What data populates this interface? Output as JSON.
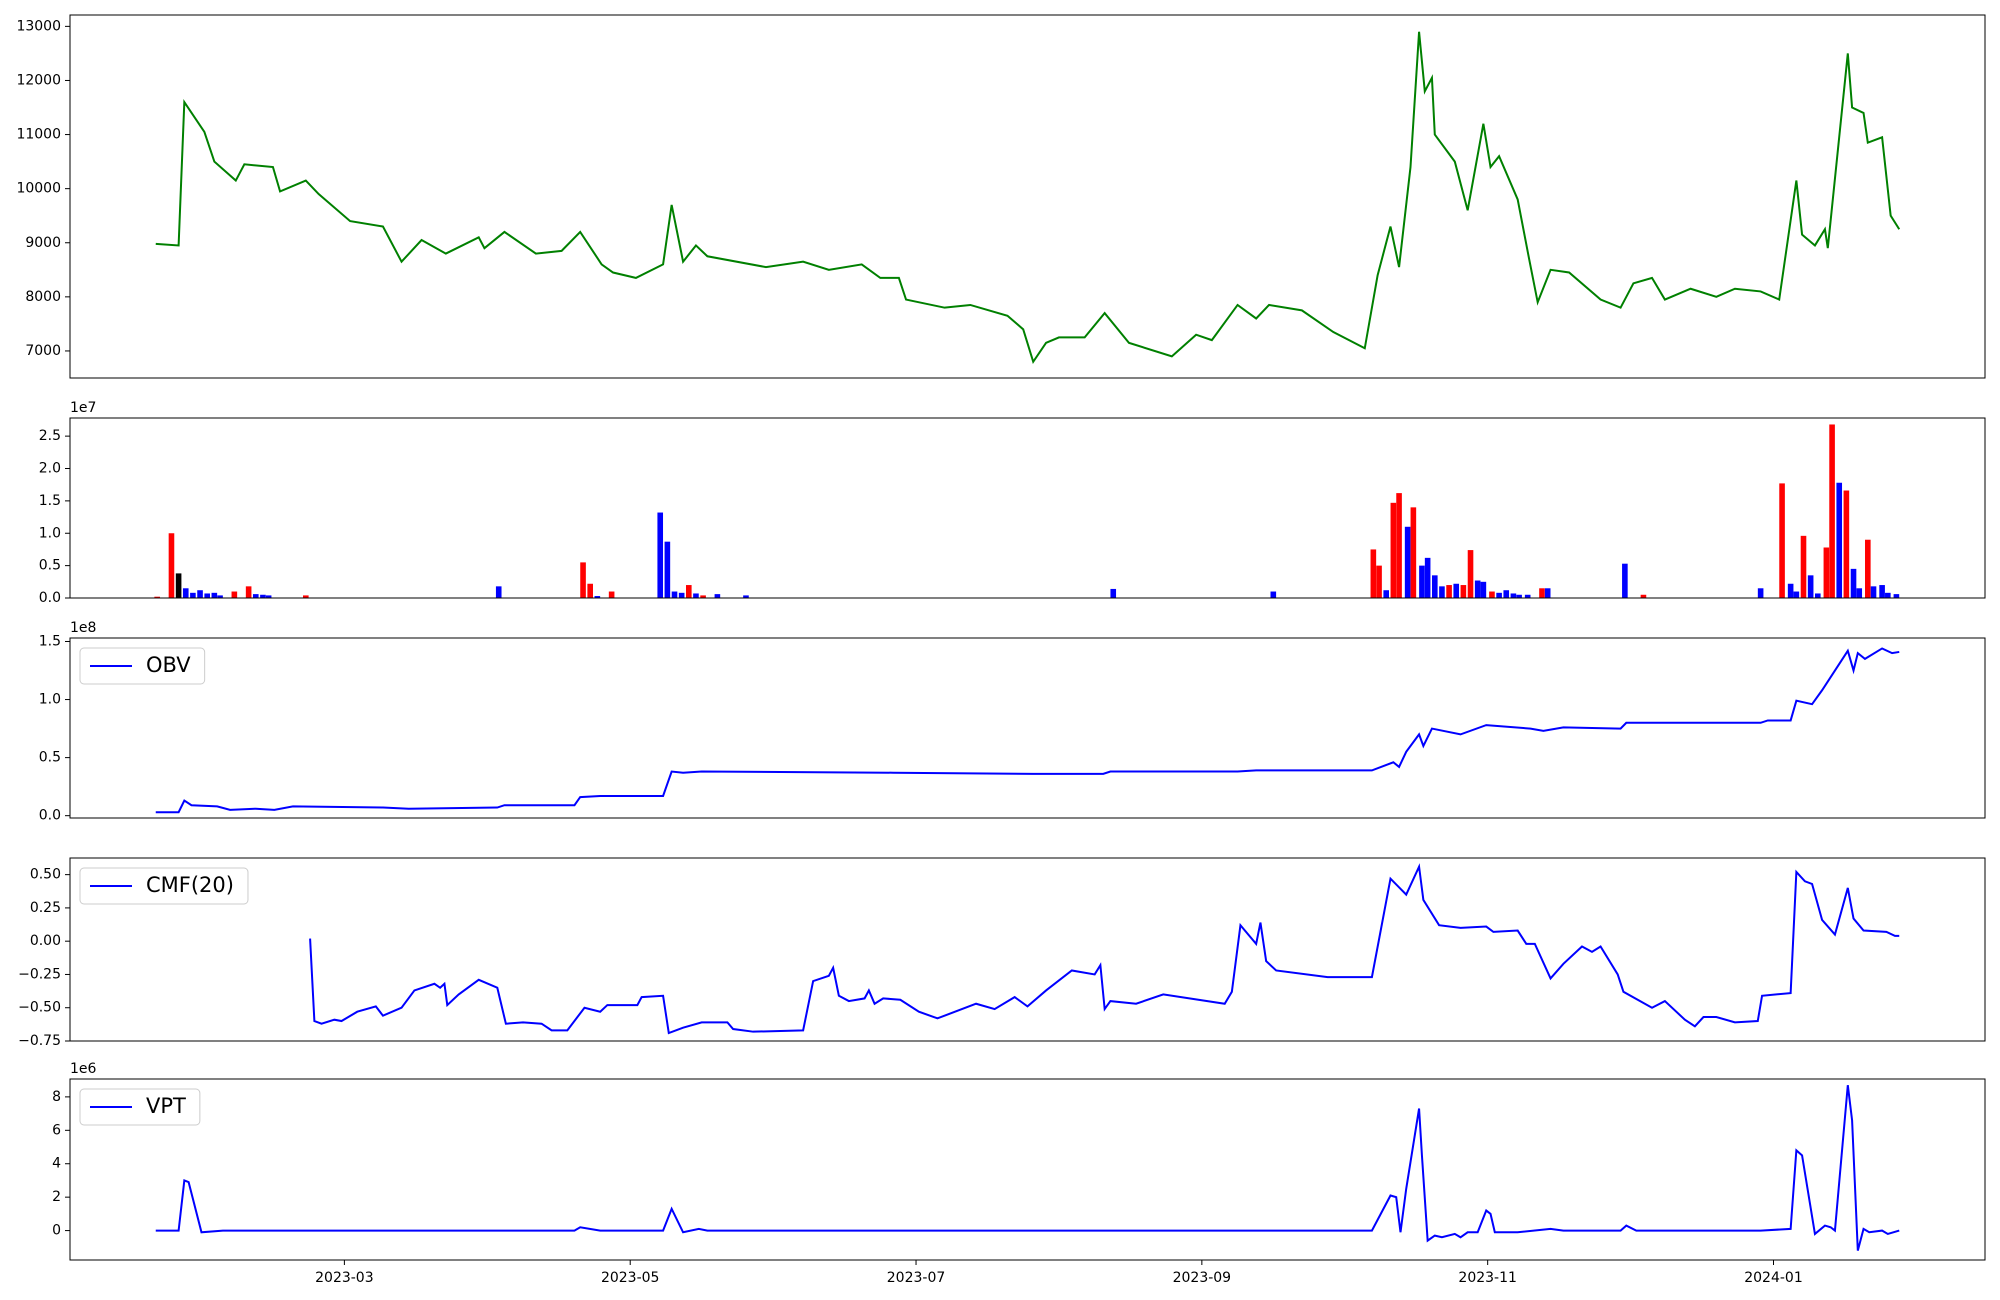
{
  "chart_data": [
    {
      "type": "line",
      "color": "#008000",
      "x": [
        0.68,
        0.84,
        0.88,
        1.02,
        1.09,
        1.24,
        1.3,
        1.5,
        1.55,
        1.73,
        1.82,
        2.04,
        2.27,
        2.4,
        2.54,
        2.71,
        2.94,
        2.98,
        3.12,
        3.34,
        3.52,
        3.65,
        3.8,
        3.88,
        4.04,
        4.23,
        4.29,
        4.37,
        4.46,
        4.54,
        4.95,
        5.21,
        5.39,
        5.62,
        5.75,
        5.88,
        5.93,
        6.2,
        6.38,
        6.64,
        6.75,
        6.82,
        6.91,
        7.0,
        7.18,
        7.32,
        7.49,
        7.79,
        7.96,
        8.07,
        8.25,
        8.38,
        8.47,
        8.7,
        8.92,
        9.14,
        9.23,
        9.32,
        9.38,
        9.46,
        9.52,
        9.56,
        9.61,
        9.63,
        9.77,
        9.86,
        9.97,
        10.02,
        10.08,
        10.21,
        10.29,
        10.35,
        10.44,
        10.57,
        10.79,
        10.93,
        11.02,
        11.15,
        11.24,
        11.42,
        11.6,
        11.73,
        11.91,
        12.04,
        12.16,
        12.2,
        12.29,
        12.36,
        12.38,
        12.52,
        12.55,
        12.63,
        12.66,
        12.76,
        12.82,
        12.88
      ],
      "values": [
        8980,
        8950,
        11600,
        11050,
        10500,
        10150,
        10450,
        10400,
        9950,
        10150,
        9900,
        9400,
        9300,
        8650,
        9050,
        8800,
        9100,
        8900,
        9200,
        8800,
        8850,
        9200,
        8600,
        8450,
        8350,
        8600,
        9700,
        8650,
        8950,
        8750,
        8550,
        8650,
        8500,
        8600,
        8350,
        8350,
        7950,
        7800,
        7850,
        7650,
        7400,
        6800,
        7150,
        7250,
        7250,
        7700,
        7150,
        6900,
        7300,
        7200,
        7850,
        7600,
        7850,
        7750,
        7350,
        7050,
        8400,
        9300,
        8550,
        10400,
        12900,
        11800,
        12050,
        11000,
        10500,
        9600,
        11200,
        10400,
        10600,
        9800,
        8700,
        7900,
        8500,
        8450,
        7950,
        7800,
        8250,
        8350,
        7950,
        8150,
        8000,
        8150,
        8100,
        7950,
        10150,
        9150,
        8950,
        9250,
        8900,
        12500,
        11500,
        11400,
        10850,
        10950,
        9500,
        9250
      ],
      "xlim": [
        0.08,
        13.48
      ],
      "ylim": [
        6500,
        13210
      ],
      "yticks": [
        7000,
        8000,
        9000,
        10000,
        11000,
        12000,
        13000
      ]
    },
    {
      "type": "bar",
      "offset_text": "1e7",
      "x": [
        0.69,
        0.79,
        0.84,
        0.89,
        0.94,
        0.99,
        1.04,
        1.09,
        1.13,
        1.23,
        1.33,
        1.38,
        1.43,
        1.47,
        1.73,
        3.08,
        3.67,
        3.72,
        3.77,
        3.87,
        4.21,
        4.26,
        4.31,
        4.36,
        4.41,
        4.46,
        4.51,
        4.61,
        4.81,
        7.38,
        8.5,
        9.2,
        9.24,
        9.29,
        9.34,
        9.38,
        9.44,
        9.48,
        9.54,
        9.58,
        9.63,
        9.68,
        9.73,
        9.78,
        9.83,
        9.88,
        9.93,
        9.97,
        10.03,
        10.08,
        10.13,
        10.18,
        10.22,
        10.28,
        10.38,
        10.42,
        10.96,
        11.09,
        11.91,
        12.06,
        12.12,
        12.16,
        12.21,
        12.26,
        12.31,
        12.37,
        12.41,
        12.46,
        12.51,
        12.56,
        12.6,
        12.66,
        12.7,
        12.76,
        12.8,
        12.86
      ],
      "values": [
        200000,
        10000000,
        3800000,
        1500000,
        800000,
        1200000,
        700000,
        800000,
        400000,
        1000000,
        1800000,
        600000,
        500000,
        400000,
        400000,
        1800000,
        5500000,
        2200000,
        300000,
        1000000,
        13200000,
        8700000,
        1000000,
        800000,
        2000000,
        700000,
        400000,
        600000,
        400000,
        1400000,
        1000000,
        7500000,
        5000000,
        1200000,
        14700000,
        16200000,
        11000000,
        14000000,
        5000000,
        6200000,
        3500000,
        1800000,
        2000000,
        2200000,
        2000000,
        7400000,
        2700000,
        2500000,
        1000000,
        800000,
        1200000,
        700000,
        500000,
        500000,
        1500000,
        1500000,
        5300000,
        500000,
        1500000,
        17700000,
        2200000,
        1000000,
        9600000,
        3500000,
        700000,
        7800000,
        26800000,
        17800000,
        16600000,
        4500000,
        1500000,
        9000000,
        1800000,
        2000000,
        800000,
        600000
      ],
      "colors": [
        "red",
        "red",
        "black",
        "blue",
        "blue",
        "blue",
        "blue",
        "blue",
        "blue",
        "red",
        "red",
        "blue",
        "blue",
        "blue",
        "red",
        "blue",
        "red",
        "red",
        "blue",
        "red",
        "blue",
        "blue",
        "blue",
        "blue",
        "red",
        "blue",
        "red",
        "blue",
        "blue",
        "blue",
        "blue",
        "red",
        "red",
        "blue",
        "red",
        "red",
        "blue",
        "red",
        "blue",
        "blue",
        "blue",
        "blue",
        "red",
        "blue",
        "red",
        "red",
        "blue",
        "blue",
        "red",
        "blue",
        "blue",
        "blue",
        "blue",
        "blue",
        "red",
        "blue",
        "blue",
        "red",
        "blue",
        "red",
        "blue",
        "blue",
        "red",
        "blue",
        "blue",
        "red",
        "red",
        "blue",
        "red",
        "blue",
        "blue",
        "red",
        "blue",
        "blue",
        "blue",
        "blue"
      ],
      "xlim": [
        0.08,
        13.48
      ],
      "ylim": [
        0,
        27800000
      ],
      "yticks": [
        {
          "value": 0,
          "label": "0.0"
        },
        {
          "value": 5000000,
          "label": "0.5"
        },
        {
          "value": 10000000,
          "label": "1.0"
        },
        {
          "value": 15000000,
          "label": "1.5"
        },
        {
          "value": 20000000,
          "label": "2.0"
        },
        {
          "value": 25000000,
          "label": "2.5"
        }
      ]
    },
    {
      "type": "line",
      "offset_text": "1e8",
      "legend": "upper left",
      "x": [
        0.68,
        0.84,
        0.88,
        0.93,
        1.11,
        1.2,
        1.38,
        1.51,
        1.64,
        2.27,
        2.45,
        3.07,
        3.12,
        3.61,
        3.65,
        3.79,
        4.23,
        4.29,
        4.37,
        4.5,
        5.84,
        6.82,
        7.31,
        7.36,
        8.25,
        8.38,
        9.19,
        9.34,
        9.38,
        9.43,
        9.52,
        9.55,
        9.61,
        9.81,
        9.99,
        10.3,
        10.39,
        10.53,
        10.93,
        10.97,
        11.91,
        11.96,
        12.12,
        12.16,
        12.27,
        12.34,
        12.52,
        12.56,
        12.59,
        12.64,
        12.76,
        12.83,
        12.88
      ],
      "series": [
        {
          "name": "OBV",
          "color": "#0000ff",
          "values": [
            3000000,
            3000000,
            13000000,
            9000000,
            8000000,
            5000000,
            6000000,
            5000000,
            8000000,
            7000000,
            6000000,
            7000000,
            9000000,
            9000000,
            16000000,
            17000000,
            17000000,
            38000000,
            37000000,
            38000000,
            37000000,
            36000000,
            36000000,
            38000000,
            38000000,
            39000000,
            39000000,
            46000000,
            42000000,
            55000000,
            70000000,
            60000000,
            75000000,
            70000000,
            78000000,
            75000000,
            73000000,
            76000000,
            75000000,
            80000000,
            80000000,
            82000000,
            82000000,
            99000000,
            96000000,
            108000000,
            142000000,
            125000000,
            140000000,
            135000000,
            144000000,
            140000000,
            141000000
          ]
        }
      ],
      "xlim": [
        0.08,
        13.48
      ],
      "ylim": [
        -2000000,
        153000000
      ],
      "yticks": [
        {
          "value": 0,
          "label": "0.0"
        },
        {
          "value": 50000000,
          "label": "0.5"
        },
        {
          "value": 100000000,
          "label": "1.0"
        },
        {
          "value": 150000000,
          "label": "1.5"
        }
      ]
    },
    {
      "type": "line",
      "legend": "upper left",
      "x": [
        1.76,
        1.79,
        1.84,
        1.93,
        1.98,
        2.09,
        2.22,
        2.27,
        2.4,
        2.49,
        2.63,
        2.67,
        2.7,
        2.72,
        2.8,
        2.94,
        3.07,
        3.13,
        3.25,
        3.38,
        3.45,
        3.56,
        3.68,
        3.79,
        3.84,
        4.05,
        4.08,
        4.23,
        4.27,
        4.37,
        4.5,
        4.68,
        4.72,
        4.86,
        5.21,
        5.28,
        5.39,
        5.42,
        5.46,
        5.53,
        5.64,
        5.67,
        5.71,
        5.77,
        5.89,
        6.02,
        6.15,
        6.42,
        6.55,
        6.69,
        6.78,
        6.91,
        7.09,
        7.25,
        7.29,
        7.32,
        7.36,
        7.54,
        7.73,
        8.16,
        8.21,
        8.27,
        8.38,
        8.41,
        8.45,
        8.52,
        8.88,
        9.19,
        9.32,
        9.43,
        9.52,
        9.55,
        9.66,
        9.81,
        9.99,
        10.04,
        10.21,
        10.27,
        10.33,
        10.44,
        10.53,
        10.66,
        10.73,
        10.79,
        10.91,
        10.95,
        11.15,
        11.24,
        11.38,
        11.45,
        11.51,
        11.6,
        11.73,
        11.89,
        11.92,
        12.12,
        12.16,
        12.22,
        12.27,
        12.34,
        12.43,
        12.52,
        12.56,
        12.63,
        12.79,
        12.85,
        12.88
      ],
      "series": [
        {
          "name": "CMF(20)",
          "color": "#0000ff",
          "values": [
            0.02,
            -0.6,
            -0.62,
            -0.59,
            -0.6,
            -0.53,
            -0.49,
            -0.56,
            -0.5,
            -0.37,
            -0.32,
            -0.35,
            -0.32,
            -0.48,
            -0.4,
            -0.29,
            -0.35,
            -0.62,
            -0.61,
            -0.62,
            -0.67,
            -0.67,
            -0.5,
            -0.53,
            -0.48,
            -0.48,
            -0.42,
            -0.41,
            -0.69,
            -0.65,
            -0.61,
            -0.61,
            -0.66,
            -0.68,
            -0.67,
            -0.3,
            -0.26,
            -0.2,
            -0.41,
            -0.45,
            -0.43,
            -0.37,
            -0.47,
            -0.43,
            -0.44,
            -0.53,
            -0.58,
            -0.47,
            -0.51,
            -0.42,
            -0.49,
            -0.37,
            -0.22,
            -0.25,
            -0.18,
            -0.51,
            -0.45,
            -0.47,
            -0.4,
            -0.47,
            -0.38,
            0.12,
            -0.02,
            0.14,
            -0.15,
            -0.22,
            -0.27,
            -0.27,
            0.47,
            0.35,
            0.56,
            0.31,
            0.12,
            0.1,
            0.11,
            0.07,
            0.08,
            -0.02,
            -0.02,
            -0.28,
            -0.17,
            -0.04,
            -0.08,
            -0.04,
            -0.25,
            -0.38,
            -0.5,
            -0.45,
            -0.59,
            -0.64,
            -0.57,
            -0.57,
            -0.61,
            -0.6,
            -0.41,
            -0.39,
            0.52,
            0.45,
            0.43,
            0.16,
            0.05,
            0.4,
            0.17,
            0.08,
            0.07,
            0.04,
            0.04
          ]
        }
      ],
      "xlim": [
        0.08,
        13.48
      ],
      "ylim": [
        -0.75,
        0.625
      ],
      "yticks": [
        {
          "value": -0.75,
          "label": "−0.75"
        },
        {
          "value": -0.5,
          "label": "−0.50"
        },
        {
          "value": -0.25,
          "label": "−0.25"
        },
        {
          "value": 0,
          "label": "0.00"
        },
        {
          "value": 0.25,
          "label": "0.25"
        },
        {
          "value": 0.5,
          "label": "0.50"
        }
      ]
    },
    {
      "type": "line",
      "offset_text": "1e6",
      "legend": "upper left",
      "x": [
        0.68,
        0.84,
        0.88,
        0.91,
        1.0,
        1.15,
        1.29,
        1.55,
        3.61,
        3.65,
        3.79,
        4.23,
        4.29,
        4.37,
        4.48,
        4.54,
        9.19,
        9.32,
        9.36,
        9.39,
        9.43,
        9.52,
        9.54,
        9.58,
        9.63,
        9.68,
        9.77,
        9.81,
        9.86,
        9.93,
        9.99,
        10.02,
        10.05,
        10.21,
        10.44,
        10.53,
        10.93,
        10.97,
        11.04,
        11.91,
        12.12,
        12.16,
        12.2,
        12.29,
        12.36,
        12.4,
        12.43,
        12.52,
        12.55,
        12.59,
        12.63,
        12.67,
        12.76,
        12.8,
        12.88
      ],
      "series": [
        {
          "name": "VPT",
          "color": "#0000ff",
          "values": [
            0,
            0,
            3000000,
            2900000,
            -100000,
            0,
            0,
            0,
            0,
            200000,
            0,
            0,
            1300000,
            -100000,
            100000,
            0,
            0,
            2100000,
            2000000,
            -100000,
            2500000,
            7300000,
            4500000,
            -600000,
            -300000,
            -400000,
            -200000,
            -400000,
            -100000,
            -100000,
            1200000,
            1000000,
            -100000,
            -100000,
            100000,
            0,
            0,
            300000,
            0,
            0,
            100000,
            4800000,
            4500000,
            -200000,
            300000,
            200000,
            0,
            8700000,
            6600000,
            -1200000,
            100000,
            -100000,
            0,
            -200000,
            0
          ]
        }
      ],
      "xlim": [
        0.08,
        13.48
      ],
      "ylim": [
        -1760000,
        9070000
      ],
      "yticks": [
        {
          "value": 0,
          "label": "0"
        },
        {
          "value": 2000000,
          "label": "2"
        },
        {
          "value": 4000000,
          "label": "4"
        },
        {
          "value": 6000000,
          "label": "6"
        },
        {
          "value": 8000000,
          "label": "8"
        }
      ],
      "xticks": [
        {
          "value": 2,
          "label": "2023-03"
        },
        {
          "value": 4,
          "label": "2023-05"
        },
        {
          "value": 6,
          "label": "2023-07"
        },
        {
          "value": 8,
          "label": "2023-09"
        },
        {
          "value": 10,
          "label": "2023-11"
        },
        {
          "value": 12,
          "label": "2024-01"
        }
      ]
    }
  ]
}
